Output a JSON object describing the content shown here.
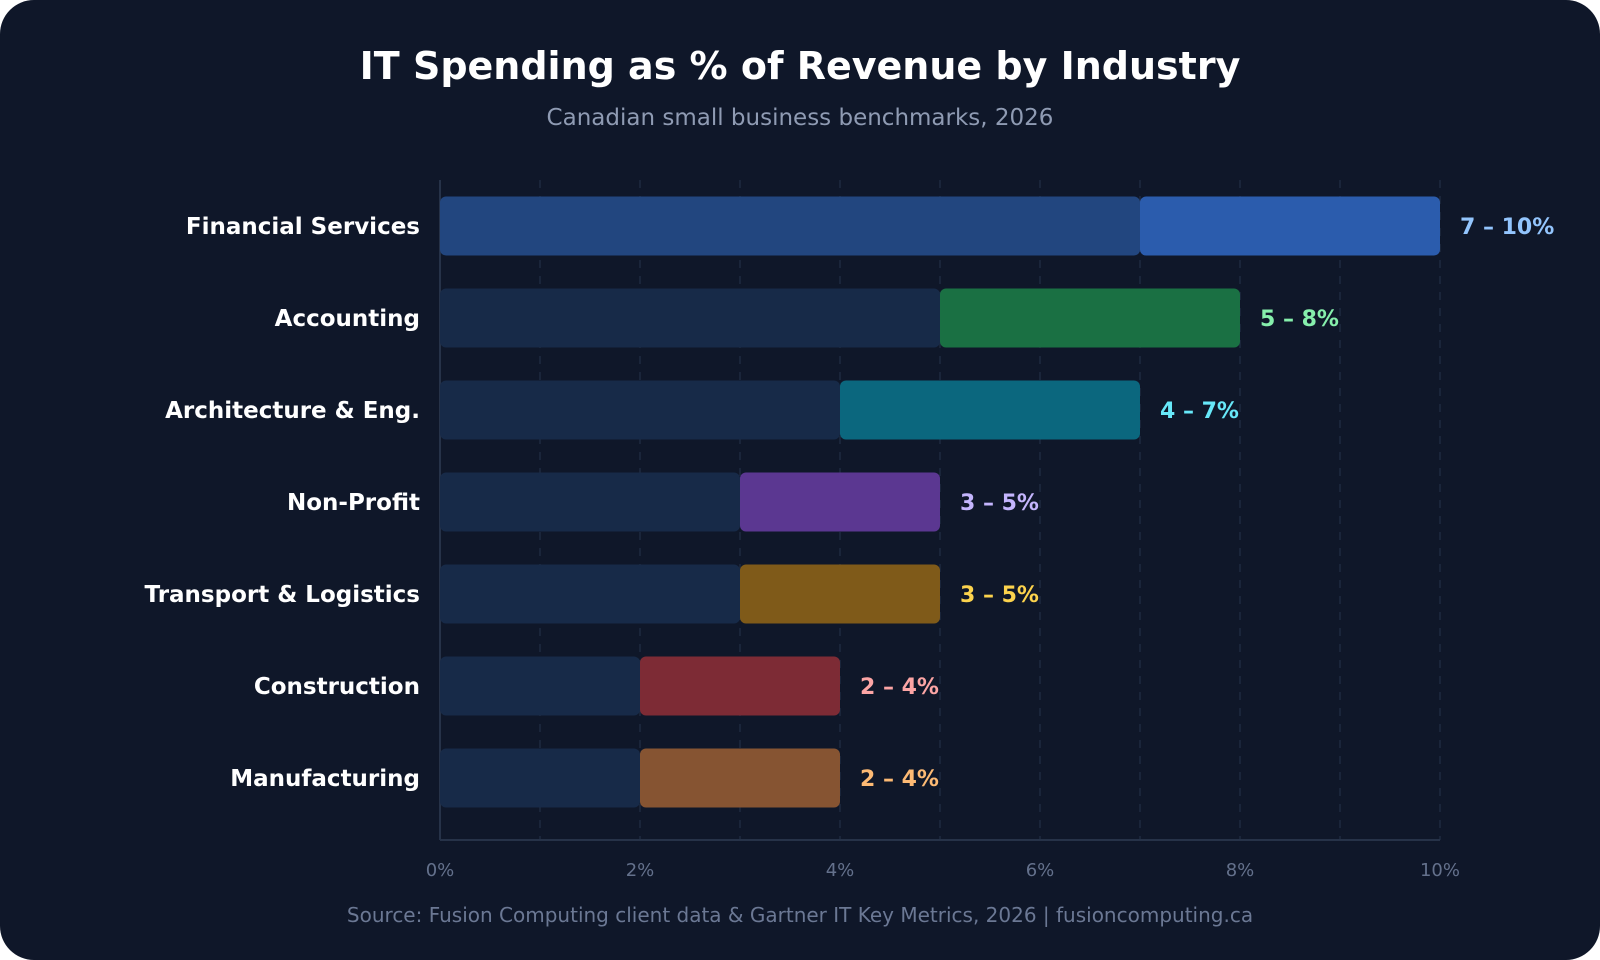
{
  "chart_data": {
    "type": "bar",
    "subtype": "floating-range-horizontal",
    "title": "IT Spending as % of Revenue by Industry",
    "subtitle": "Canadian small business benchmarks, 2026",
    "source": "Source: Fusion Computing client data & Gartner IT Key Metrics, 2026 | fusioncomputing.ca",
    "xlim": [
      0,
      10
    ],
    "x_ticks": [
      "0%",
      "2%",
      "4%",
      "6%",
      "8%",
      "10%"
    ],
    "grid": "vertical dashed at every 1%",
    "categories": [
      "Financial Services",
      "Accounting",
      "Architecture & Eng.",
      "Non-Profit",
      "Transport & Logistics",
      "Construction",
      "Manufacturing"
    ],
    "ranges": [
      {
        "low": 7,
        "high": 10,
        "label": "7 – 10%",
        "color": "#2b5cad",
        "label_color": "#93c5fd",
        "base_color": "#22467f"
      },
      {
        "low": 5,
        "high": 8,
        "label": "5 – 8%",
        "color": "#1a7043",
        "label_color": "#86efac",
        "base_color": "#172a48"
      },
      {
        "low": 4,
        "high": 7,
        "label": "4 – 7%",
        "color": "#0b677e",
        "label_color": "#67e8f9",
        "base_color": "#172a48"
      },
      {
        "low": 3,
        "high": 5,
        "label": "3 – 5%",
        "color": "#5b3791",
        "label_color": "#c4b5fd",
        "base_color": "#172a48"
      },
      {
        "low": 3,
        "high": 5,
        "label": "3 – 5%",
        "color": "#7f5a19",
        "label_color": "#fcd34d",
        "base_color": "#172a48"
      },
      {
        "low": 2,
        "high": 4,
        "label": "2 – 4%",
        "color": "#7d2b35",
        "label_color": "#fca5a5",
        "base_color": "#172a48"
      },
      {
        "low": 2,
        "high": 4,
        "label": "2 – 4%",
        "color": "#865432",
        "label_color": "#fdba74",
        "base_color": "#172a48"
      }
    ]
  }
}
